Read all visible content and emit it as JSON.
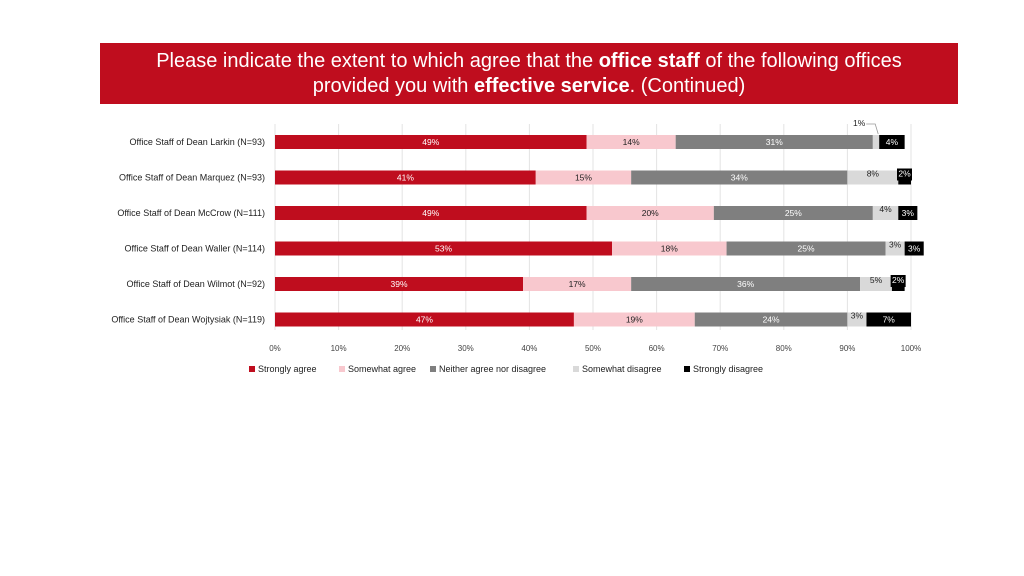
{
  "title": {
    "line1_pre": "Please indicate the extent to which agree that the ",
    "line1_bold": "office staff",
    "line1_post": " of the following offices",
    "line2_pre": "provided you with ",
    "line2_bold": "effective service",
    "line2_post": ". (Continued)"
  },
  "chart_data": {
    "type": "bar",
    "orientation": "horizontal",
    "stacked": true,
    "categories": [
      "Office Staff of Dean Larkin (N=93)",
      "Office Staff of Dean Marquez (N=93)",
      "Office Staff of Dean McCrow (N=111)",
      "Office Staff of Dean Waller (N=114)",
      "Office Staff of Dean Wilmot (N=92)",
      "Office Staff of Dean Wojtysiak (N=119)"
    ],
    "series": [
      {
        "name": "Strongly agree",
        "color": "#bf0d1e",
        "text_color": "#ffffff",
        "values": [
          49,
          41,
          49,
          53,
          39,
          47
        ]
      },
      {
        "name": "Somewhat agree",
        "color": "#f8c8ce",
        "text_color": "#222222",
        "values": [
          14,
          15,
          20,
          18,
          17,
          19
        ]
      },
      {
        "name": "Neither agree nor disagree",
        "color": "#7f7f7f",
        "text_color": "#ffffff",
        "values": [
          31,
          34,
          25,
          25,
          36,
          24
        ]
      },
      {
        "name": "Somewhat disagree",
        "color": "#d9d9d9",
        "text_color": "#222222",
        "values": [
          1,
          8,
          4,
          3,
          5,
          3
        ]
      },
      {
        "name": "Strongly disagree",
        "color": "#000000",
        "text_color": "#ffffff",
        "values": [
          4,
          2,
          3,
          3,
          2,
          7
        ]
      }
    ],
    "value_labels": [
      [
        "49%",
        "14%",
        "31%",
        "1%",
        "4%"
      ],
      [
        "41%",
        "15%",
        "34%",
        "8%",
        "2%"
      ],
      [
        "49%",
        "20%",
        "25%",
        "4%",
        "3%"
      ],
      [
        "53%",
        "18%",
        "25%",
        "3%",
        "3%"
      ],
      [
        "39%",
        "17%",
        "36%",
        "5%",
        "2%"
      ],
      [
        "47%",
        "19%",
        "24%",
        "3%",
        "7%"
      ]
    ],
    "xlim": [
      0,
      100
    ],
    "x_ticks": [
      "0%",
      "10%",
      "20%",
      "30%",
      "40%",
      "50%",
      "60%",
      "70%",
      "80%",
      "90%",
      "100%"
    ],
    "grid": true,
    "legend": "bottom"
  }
}
